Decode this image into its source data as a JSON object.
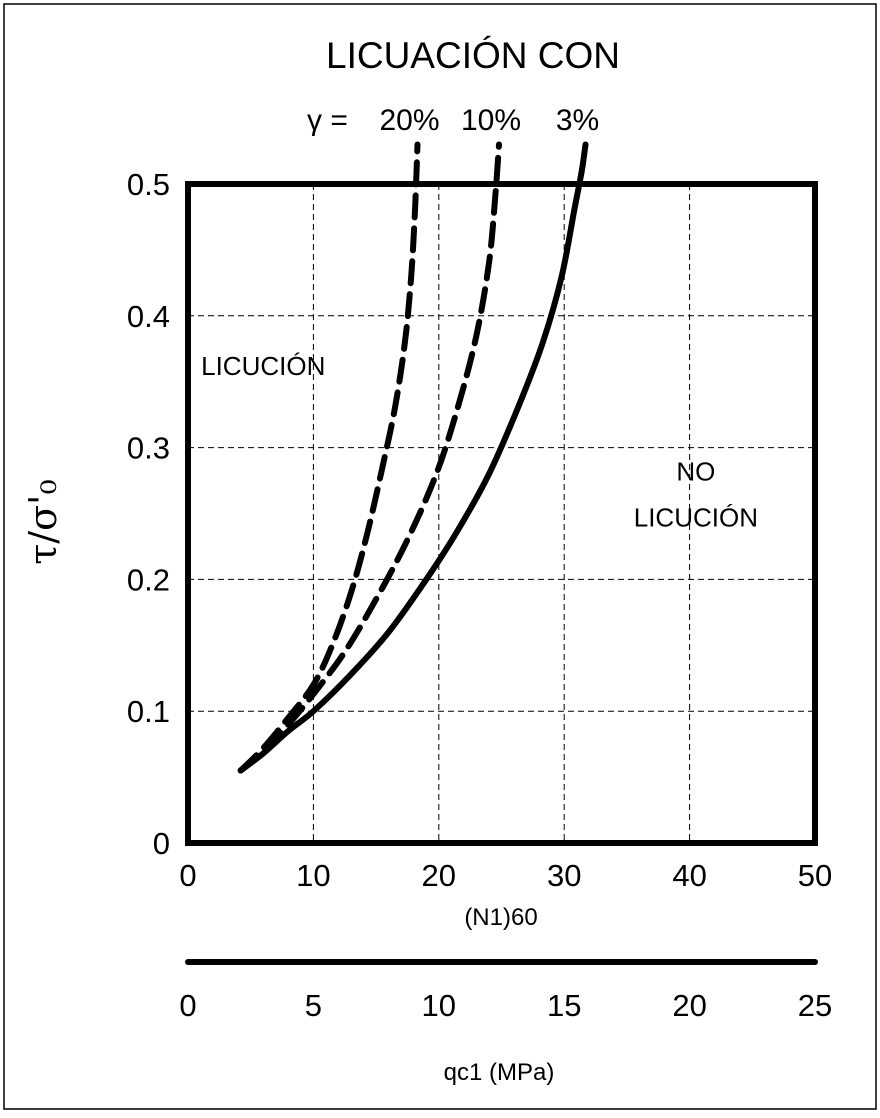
{
  "chart_data": {
    "type": "line",
    "title": "LICUACIÓN CON",
    "gamma_symbol": "γ =",
    "ylabel": "τ/σ'₀",
    "xlabel": "(N1)60",
    "xlabel2": "qc1 (MPa)",
    "xlim": [
      0,
      50
    ],
    "ylim": [
      0,
      0.5
    ],
    "x2lim": [
      0,
      25
    ],
    "x_ticks": [
      "0",
      "10",
      "20",
      "30",
      "40",
      "50"
    ],
    "y_ticks": [
      "0",
      "0.1",
      "0.2",
      "0.3",
      "0.4",
      "0.5"
    ],
    "x2_ticks": [
      "0",
      "5",
      "10",
      "15",
      "20",
      "25"
    ],
    "grid": true,
    "region_labels": [
      {
        "text": "LICUCIÓN",
        "x": 6,
        "y": 0.355
      },
      {
        "text": "NO",
        "x": 40.5,
        "y": 0.275
      },
      {
        "text": "LICUCIÓN",
        "x": 40.5,
        "y": 0.24
      }
    ],
    "series": [
      {
        "name": "20%",
        "style": "dashed",
        "x": [
          4.2,
          6,
          8,
          10,
          11.5,
          13,
          14.3,
          15.5,
          16.5,
          17.3,
          17.8,
          18.1,
          18.3
        ],
        "y": [
          0.055,
          0.072,
          0.095,
          0.12,
          0.15,
          0.19,
          0.235,
          0.285,
          0.33,
          0.38,
          0.43,
          0.48,
          0.53
        ]
      },
      {
        "name": "10%",
        "style": "dashed",
        "x": [
          4.2,
          6,
          8,
          10,
          12.5,
          15,
          17.5,
          19.8,
          21.5,
          23,
          24,
          24.5,
          24.8
        ],
        "y": [
          0.055,
          0.07,
          0.09,
          0.113,
          0.145,
          0.185,
          0.23,
          0.28,
          0.33,
          0.385,
          0.44,
          0.49,
          0.53
        ]
      },
      {
        "name": "3%",
        "style": "solid",
        "x": [
          4.2,
          6,
          8,
          10,
          13,
          16,
          19,
          21.5,
          24,
          26.3,
          28.3,
          29.8,
          30.8,
          31.4,
          31.7
        ],
        "y": [
          0.055,
          0.068,
          0.085,
          0.1,
          0.128,
          0.16,
          0.2,
          0.237,
          0.28,
          0.33,
          0.38,
          0.43,
          0.48,
          0.51,
          0.53
        ]
      }
    ]
  }
}
